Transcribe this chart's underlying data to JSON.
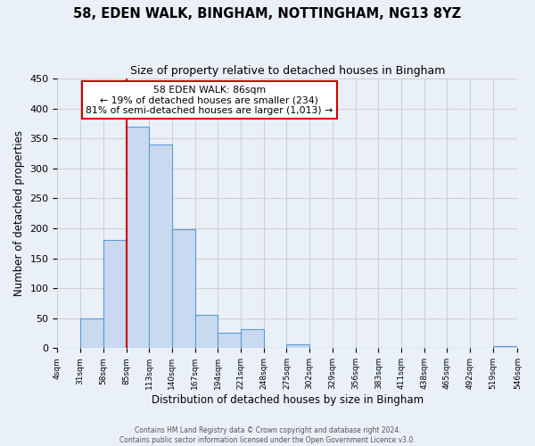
{
  "title1": "58, EDEN WALK, BINGHAM, NOTTINGHAM, NG13 8YZ",
  "title2": "Size of property relative to detached houses in Bingham",
  "xlabel": "Distribution of detached houses by size in Bingham",
  "ylabel": "Number of detached properties",
  "bin_edges": [
    4,
    31,
    58,
    85,
    112,
    139,
    166,
    193,
    220,
    247,
    274,
    301,
    328,
    355,
    382,
    409,
    436,
    463,
    490,
    517,
    546
  ],
  "bin_heights": [
    0,
    49,
    181,
    369,
    340,
    199,
    55,
    26,
    32,
    0,
    6,
    0,
    0,
    0,
    0,
    0,
    0,
    0,
    0,
    3
  ],
  "bar_color": "#c9d9f0",
  "bar_edge_color": "#5b9bd5",
  "reference_line_x": 86,
  "reference_line_color": "#cc0000",
  "annotation_title": "58 EDEN WALK: 86sqm",
  "annotation_line1": "← 19% of detached houses are smaller (234)",
  "annotation_line2": "81% of semi-detached houses are larger (1,013) →",
  "annotation_box_edge_color": "#cc0000",
  "annotation_box_bg": "#ffffff",
  "ylim": [
    0,
    450
  ],
  "xlim": [
    4,
    546
  ],
  "yticks": [
    0,
    50,
    100,
    150,
    200,
    250,
    300,
    350,
    400,
    450
  ],
  "xtick_labels": [
    "4sqm",
    "31sqm",
    "58sqm",
    "85sqm",
    "113sqm",
    "140sqm",
    "167sqm",
    "194sqm",
    "221sqm",
    "248sqm",
    "275sqm",
    "302sqm",
    "329sqm",
    "356sqm",
    "383sqm",
    "411sqm",
    "438sqm",
    "465sqm",
    "492sqm",
    "519sqm",
    "546sqm"
  ],
  "grid_color": "#d0d0d0",
  "bg_color": "#eaf0f8",
  "footer1": "Contains HM Land Registry data © Crown copyright and database right 2024.",
  "footer2": "Contains public sector information licensed under the Open Government Licence v3.0."
}
